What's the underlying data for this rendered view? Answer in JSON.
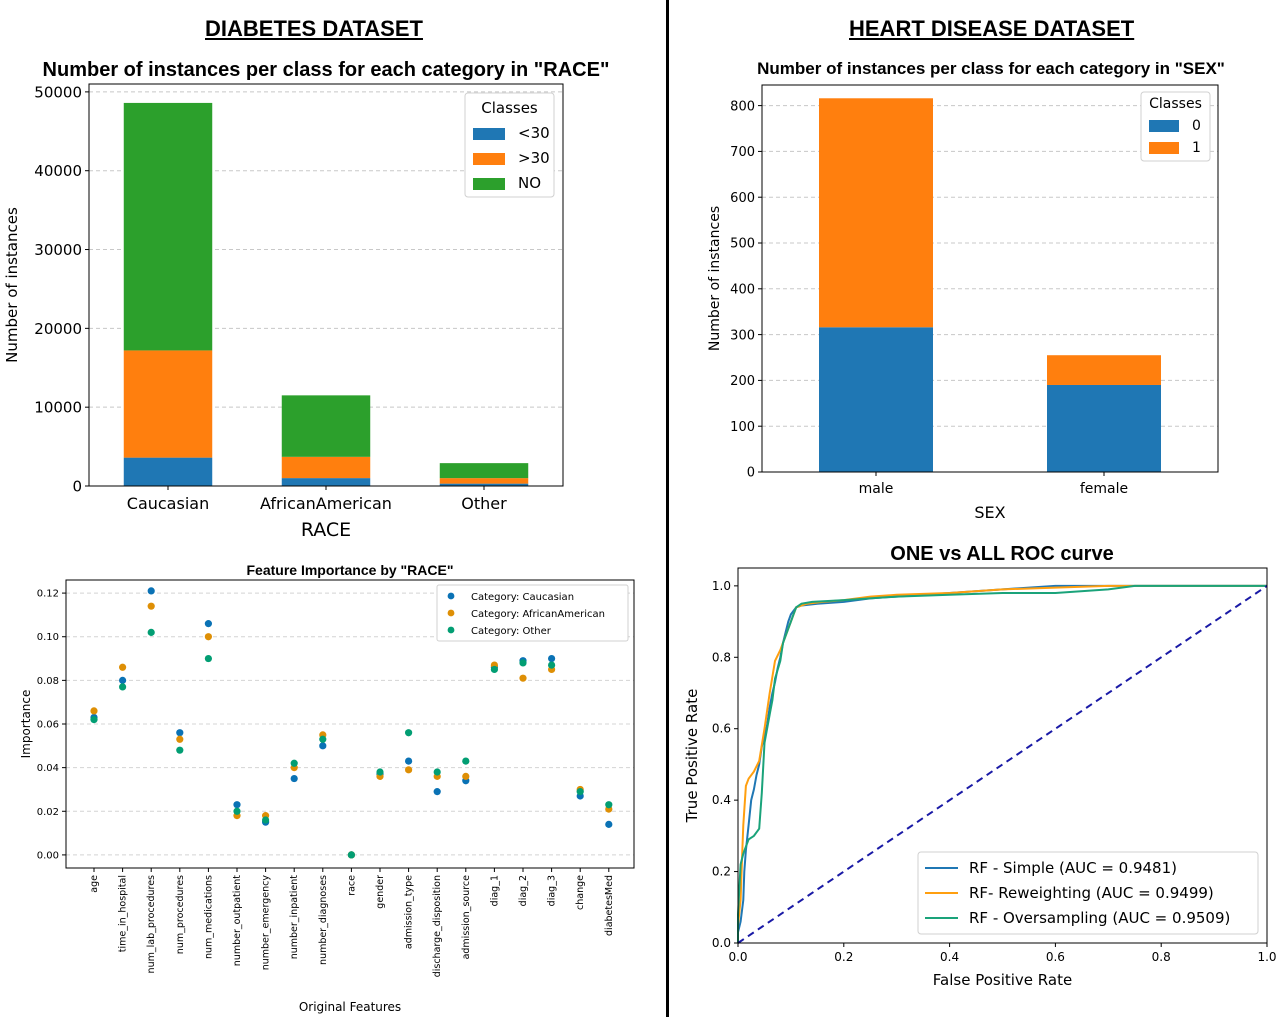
{
  "sections": {
    "left_title": "DIABETES DATASET",
    "right_title": "HEART DISEASE DATASET"
  },
  "chart_data": [
    {
      "id": "race-bar",
      "type": "bar",
      "stacked": true,
      "title": "Number of instances per class for each category in \"RACE\"",
      "xlabel": "RACE",
      "ylabel": "Number of instances",
      "categories": [
        "Caucasian",
        "AfricanAmerican",
        "Other"
      ],
      "series": [
        {
          "name": "<30",
          "color": "#1f77b4",
          "values": [
            3600,
            1000,
            300
          ]
        },
        {
          "name": ">30",
          "color": "#ff7f0e",
          "values": [
            13600,
            2700,
            700
          ]
        },
        {
          "name": "NO",
          "color": "#2ca02c",
          "values": [
            31400,
            7800,
            1900
          ]
        }
      ],
      "ylim": [
        0,
        51000
      ],
      "yticks": [
        0,
        10000,
        20000,
        30000,
        40000,
        50000
      ],
      "legend": {
        "title": "Classes",
        "position": "top-right"
      },
      "grid": "y-dashed"
    },
    {
      "id": "sex-bar",
      "type": "bar",
      "stacked": true,
      "title": "Number of instances per class for each category in \"SEX\"",
      "xlabel": "SEX",
      "ylabel": "Number of instances",
      "categories": [
        "male",
        "female"
      ],
      "series": [
        {
          "name": "0",
          "color": "#1f77b4",
          "values": [
            316,
            190
          ]
        },
        {
          "name": "1",
          "color": "#ff7f0e",
          "values": [
            500,
            65
          ]
        }
      ],
      "ylim": [
        0,
        845
      ],
      "yticks": [
        0,
        100,
        200,
        300,
        400,
        500,
        600,
        700,
        800
      ],
      "legend": {
        "title": "Classes",
        "position": "top-right"
      },
      "grid": "y-dashed"
    },
    {
      "id": "feature-importance",
      "type": "scatter",
      "title": "Feature Importance by \"RACE\"",
      "xlabel": "Original Features",
      "ylabel": "Importance",
      "categories": [
        "age",
        "time_in_hospital",
        "num_lab_procedures",
        "num_procedures",
        "num_medications",
        "number_outpatient",
        "number_emergency",
        "number_inpatient",
        "number_diagnoses",
        "race",
        "gender",
        "admission_type",
        "discharge_disposition",
        "admission_source",
        "diag_1",
        "diag_2",
        "diag_3",
        "change",
        "diabetesMed"
      ],
      "series": [
        {
          "name": "Category: Caucasian",
          "color": "#0a72b5",
          "values": [
            0.063,
            0.08,
            0.121,
            0.056,
            0.106,
            0.023,
            0.015,
            0.035,
            0.05,
            0.0,
            0.037,
            0.043,
            0.029,
            0.034,
            0.086,
            0.089,
            0.09,
            0.027,
            0.014
          ]
        },
        {
          "name": "Category: AfricanAmerican",
          "color": "#de8f05",
          "values": [
            0.066,
            0.086,
            0.114,
            0.053,
            0.1,
            0.018,
            0.018,
            0.04,
            0.055,
            0.0,
            0.036,
            0.039,
            0.036,
            0.036,
            0.087,
            0.081,
            0.085,
            0.03,
            0.021
          ]
        },
        {
          "name": "Category: Other",
          "color": "#029e73",
          "values": [
            0.062,
            0.077,
            0.102,
            0.048,
            0.09,
            0.02,
            0.016,
            0.042,
            0.053,
            0.0,
            0.038,
            0.056,
            0.038,
            0.043,
            0.085,
            0.088,
            0.087,
            0.029,
            0.023
          ]
        }
      ],
      "ylim": [
        -0.006,
        0.126
      ],
      "yticks": [
        0.0,
        0.02,
        0.04,
        0.06,
        0.08,
        0.1,
        0.12
      ],
      "legend": {
        "position": "top-right"
      },
      "grid": "y-dashed"
    },
    {
      "id": "roc",
      "type": "line",
      "title": "ONE vs ALL ROC curve",
      "xlabel": "False Positive Rate",
      "ylabel": "True Positive Rate",
      "xlim": [
        0,
        1
      ],
      "ylim": [
        0,
        1.05
      ],
      "xticks": [
        0.0,
        0.2,
        0.4,
        0.6,
        0.8,
        1.0
      ],
      "yticks": [
        0.0,
        0.2,
        0.4,
        0.6,
        0.8,
        1.0
      ],
      "series": [
        {
          "name": "RF - Simple (AUC = 0.9481)",
          "color": "#1f77b4",
          "points": [
            [
              0,
              0
            ],
            [
              0,
              0.03
            ],
            [
              0.005,
              0.06
            ],
            [
              0.01,
              0.12
            ],
            [
              0.012,
              0.2
            ],
            [
              0.015,
              0.26
            ],
            [
              0.02,
              0.33
            ],
            [
              0.025,
              0.4
            ],
            [
              0.03,
              0.43
            ],
            [
              0.035,
              0.47
            ],
            [
              0.04,
              0.5
            ],
            [
              0.045,
              0.55
            ],
            [
              0.05,
              0.58
            ],
            [
              0.055,
              0.61
            ],
            [
              0.06,
              0.66
            ],
            [
              0.065,
              0.7
            ],
            [
              0.07,
              0.73
            ],
            [
              0.075,
              0.77
            ],
            [
              0.08,
              0.8
            ],
            [
              0.085,
              0.84
            ],
            [
              0.09,
              0.87
            ],
            [
              0.095,
              0.9
            ],
            [
              0.1,
              0.92
            ],
            [
              0.105,
              0.93
            ],
            [
              0.11,
              0.94
            ],
            [
              0.12,
              0.945
            ],
            [
              0.15,
              0.95
            ],
            [
              0.2,
              0.955
            ],
            [
              0.25,
              0.965
            ],
            [
              0.3,
              0.97
            ],
            [
              0.4,
              0.98
            ],
            [
              0.5,
              0.99
            ],
            [
              0.55,
              0.995
            ],
            [
              0.6,
              1.0
            ],
            [
              1,
              1.0
            ]
          ]
        },
        {
          "name": "RF- Reweighting (AUC = 0.9499)",
          "color": "#ff9f0f",
          "points": [
            [
              0,
              0
            ],
            [
              0,
              0.05
            ],
            [
              0.005,
              0.12
            ],
            [
              0.008,
              0.25
            ],
            [
              0.01,
              0.33
            ],
            [
              0.015,
              0.44
            ],
            [
              0.02,
              0.46
            ],
            [
              0.03,
              0.48
            ],
            [
              0.04,
              0.51
            ],
            [
              0.05,
              0.6
            ],
            [
              0.06,
              0.7
            ],
            [
              0.07,
              0.79
            ],
            [
              0.08,
              0.82
            ],
            [
              0.09,
              0.86
            ],
            [
              0.1,
              0.9
            ],
            [
              0.11,
              0.94
            ],
            [
              0.13,
              0.95
            ],
            [
              0.16,
              0.955
            ],
            [
              0.2,
              0.96
            ],
            [
              0.25,
              0.97
            ],
            [
              0.3,
              0.975
            ],
            [
              0.4,
              0.98
            ],
            [
              0.5,
              0.99
            ],
            [
              0.6,
              0.995
            ],
            [
              0.7,
              1.0
            ],
            [
              1,
              1.0
            ]
          ]
        },
        {
          "name": "RF - Oversampling (AUC = 0.9509)",
          "color": "#1aa37a",
          "points": [
            [
              0,
              0
            ],
            [
              0,
              0.08
            ],
            [
              0.005,
              0.22
            ],
            [
              0.01,
              0.25
            ],
            [
              0.015,
              0.27
            ],
            [
              0.02,
              0.29
            ],
            [
              0.03,
              0.3
            ],
            [
              0.04,
              0.32
            ],
            [
              0.045,
              0.42
            ],
            [
              0.05,
              0.56
            ],
            [
              0.06,
              0.64
            ],
            [
              0.065,
              0.68
            ],
            [
              0.07,
              0.74
            ],
            [
              0.08,
              0.79
            ],
            [
              0.085,
              0.84
            ],
            [
              0.09,
              0.86
            ],
            [
              0.1,
              0.9
            ],
            [
              0.105,
              0.92
            ],
            [
              0.11,
              0.94
            ],
            [
              0.12,
              0.95
            ],
            [
              0.14,
              0.955
            ],
            [
              0.2,
              0.96
            ],
            [
              0.3,
              0.97
            ],
            [
              0.4,
              0.975
            ],
            [
              0.5,
              0.98
            ],
            [
              0.6,
              0.98
            ],
            [
              0.7,
              0.99
            ],
            [
              0.75,
              1.0
            ],
            [
              1,
              1.0
            ]
          ]
        },
        {
          "name": "chance",
          "color": "#1a1aa6",
          "dashed": true,
          "points": [
            [
              0,
              0
            ],
            [
              1,
              1
            ]
          ]
        }
      ],
      "legend": {
        "position": "bottom-right"
      },
      "grid": "none"
    }
  ]
}
